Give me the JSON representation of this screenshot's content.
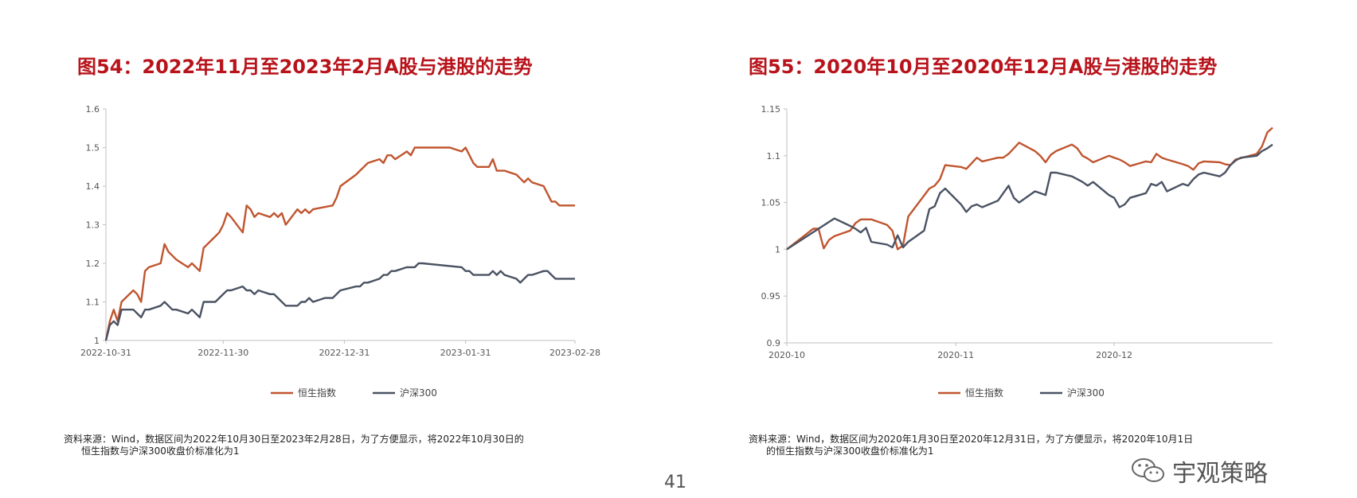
{
  "page_number": "41",
  "logo_text": "宇观策略",
  "colors": {
    "hsi": "#c0552f",
    "csi300": "#4a5263",
    "title": "#b8131b"
  },
  "chart_data": [
    {
      "type": "line",
      "title": "图54：2022年11月至2023年2月A股与港股的走势",
      "x_tick_labels": [
        "2022-10-31",
        "2022-11-30",
        "2022-12-31",
        "2023-01-31",
        "2023-02-28"
      ],
      "x_range": [
        "2022-10-31",
        "2023-02-28"
      ],
      "ylim": [
        1,
        1.6
      ],
      "y_ticks": [
        "1",
        "1.1",
        "1.2",
        "1.3",
        "1.4",
        "1.5",
        "1.6"
      ],
      "legend": [
        "恒生指数",
        "沪深300"
      ],
      "legend_position": "bottom",
      "source_line1": "资料来源：Wind，数据区间为2022年10月30日至2023年2月28日，为了方便显示，将2022年10月30日的",
      "source_line2": "恒生指数与沪深300收盘价标准化为1",
      "series": [
        {
          "name": "恒生指数",
          "x": [
            "2022-10-31",
            "2022-11-01",
            "2022-11-02",
            "2022-11-03",
            "2022-11-04",
            "2022-11-07",
            "2022-11-08",
            "2022-11-09",
            "2022-11-10",
            "2022-11-11",
            "2022-11-14",
            "2022-11-15",
            "2022-11-16",
            "2022-11-17",
            "2022-11-18",
            "2022-11-21",
            "2022-11-22",
            "2022-11-23",
            "2022-11-24",
            "2022-11-25",
            "2022-11-28",
            "2022-11-29",
            "2022-11-30",
            "2022-12-01",
            "2022-12-02",
            "2022-12-05",
            "2022-12-06",
            "2022-12-07",
            "2022-12-08",
            "2022-12-09",
            "2022-12-12",
            "2022-12-13",
            "2022-12-14",
            "2022-12-15",
            "2022-12-16",
            "2022-12-19",
            "2022-12-20",
            "2022-12-21",
            "2022-12-22",
            "2022-12-23",
            "2022-12-28",
            "2022-12-29",
            "2022-12-30",
            "2023-01-03",
            "2023-01-04",
            "2023-01-05",
            "2023-01-06",
            "2023-01-09",
            "2023-01-10",
            "2023-01-11",
            "2023-01-12",
            "2023-01-13",
            "2023-01-16",
            "2023-01-17",
            "2023-01-18",
            "2023-01-19",
            "2023-01-20",
            "2023-01-26",
            "2023-01-27",
            "2023-01-30",
            "2023-01-31",
            "2023-02-01",
            "2023-02-02",
            "2023-02-03",
            "2023-02-06",
            "2023-02-07",
            "2023-02-08",
            "2023-02-09",
            "2023-02-10",
            "2023-02-13",
            "2023-02-14",
            "2023-02-15",
            "2023-02-16",
            "2023-02-17",
            "2023-02-20",
            "2023-02-21",
            "2023-02-22",
            "2023-02-23",
            "2023-02-24",
            "2023-02-27",
            "2023-02-28"
          ],
          "values": [
            1.0,
            1.05,
            1.08,
            1.05,
            1.1,
            1.13,
            1.12,
            1.1,
            1.18,
            1.19,
            1.2,
            1.25,
            1.23,
            1.22,
            1.21,
            1.19,
            1.2,
            1.19,
            1.18,
            1.24,
            1.27,
            1.28,
            1.3,
            1.33,
            1.32,
            1.28,
            1.35,
            1.34,
            1.32,
            1.33,
            1.32,
            1.33,
            1.32,
            1.33,
            1.3,
            1.34,
            1.33,
            1.34,
            1.33,
            1.34,
            1.35,
            1.37,
            1.4,
            1.43,
            1.44,
            1.45,
            1.46,
            1.47,
            1.46,
            1.48,
            1.48,
            1.47,
            1.49,
            1.48,
            1.5,
            1.5,
            1.5,
            1.5,
            1.5,
            1.49,
            1.5,
            1.48,
            1.46,
            1.45,
            1.45,
            1.47,
            1.44,
            1.44,
            1.44,
            1.43,
            1.42,
            1.41,
            1.42,
            1.41,
            1.4,
            1.38,
            1.36,
            1.36,
            1.35,
            1.35,
            1.35
          ]
        },
        {
          "name": "沪深300",
          "x": [
            "2022-10-31",
            "2022-11-01",
            "2022-11-02",
            "2022-11-03",
            "2022-11-04",
            "2022-11-07",
            "2022-11-08",
            "2022-11-09",
            "2022-11-10",
            "2022-11-11",
            "2022-11-14",
            "2022-11-15",
            "2022-11-16",
            "2022-11-17",
            "2022-11-18",
            "2022-11-21",
            "2022-11-22",
            "2022-11-23",
            "2022-11-24",
            "2022-11-25",
            "2022-11-28",
            "2022-11-29",
            "2022-11-30",
            "2022-12-01",
            "2022-12-02",
            "2022-12-05",
            "2022-12-06",
            "2022-12-07",
            "2022-12-08",
            "2022-12-09",
            "2022-12-12",
            "2022-12-13",
            "2022-12-14",
            "2022-12-15",
            "2022-12-16",
            "2022-12-19",
            "2022-12-20",
            "2022-12-21",
            "2022-12-22",
            "2022-12-23",
            "2022-12-26",
            "2022-12-27",
            "2022-12-28",
            "2022-12-29",
            "2022-12-30",
            "2023-01-03",
            "2023-01-04",
            "2023-01-05",
            "2023-01-06",
            "2023-01-09",
            "2023-01-10",
            "2023-01-11",
            "2023-01-12",
            "2023-01-13",
            "2023-01-16",
            "2023-01-17",
            "2023-01-18",
            "2023-01-19",
            "2023-01-20",
            "2023-01-30",
            "2023-01-31",
            "2023-02-01",
            "2023-02-02",
            "2023-02-03",
            "2023-02-06",
            "2023-02-07",
            "2023-02-08",
            "2023-02-09",
            "2023-02-10",
            "2023-02-13",
            "2023-02-14",
            "2023-02-15",
            "2023-02-16",
            "2023-02-17",
            "2023-02-20",
            "2023-02-21",
            "2023-02-22",
            "2023-02-23",
            "2023-02-24",
            "2023-02-27",
            "2023-02-28"
          ],
          "values": [
            1.0,
            1.04,
            1.05,
            1.04,
            1.08,
            1.08,
            1.07,
            1.06,
            1.08,
            1.08,
            1.09,
            1.1,
            1.09,
            1.08,
            1.08,
            1.07,
            1.08,
            1.07,
            1.06,
            1.1,
            1.1,
            1.11,
            1.12,
            1.13,
            1.13,
            1.14,
            1.13,
            1.13,
            1.12,
            1.13,
            1.12,
            1.12,
            1.11,
            1.1,
            1.09,
            1.09,
            1.1,
            1.1,
            1.11,
            1.1,
            1.11,
            1.11,
            1.11,
            1.12,
            1.13,
            1.14,
            1.14,
            1.15,
            1.15,
            1.16,
            1.17,
            1.17,
            1.18,
            1.18,
            1.19,
            1.19,
            1.19,
            1.2,
            1.2,
            1.19,
            1.18,
            1.18,
            1.17,
            1.17,
            1.17,
            1.18,
            1.17,
            1.18,
            1.17,
            1.16,
            1.15,
            1.16,
            1.17,
            1.17,
            1.18,
            1.18,
            1.17,
            1.16,
            1.16,
            1.16,
            1.16
          ]
        }
      ]
    },
    {
      "type": "line",
      "title": "图55：2020年10月至2020年12月A股与港股的走势",
      "x_tick_labels": [
        "2020-10",
        "2020-11",
        "2020-12"
      ],
      "x_range": [
        "2020-09-30",
        "2020-12-31"
      ],
      "ylim": [
        0.9,
        1.15
      ],
      "y_ticks": [
        "0.9",
        "0.95",
        "1",
        "1.05",
        "1.1",
        "1.15"
      ],
      "legend": [
        "恒生指数",
        "沪深300"
      ],
      "legend_position": "bottom",
      "source_line1": "资料来源：Wind，数据区间为2020年1月30日至2020年12月31日，为了方便显示，将2020年10月1日",
      "source_line2": "的恒生指数与沪深300收盘价标准化为1",
      "series": [
        {
          "name": "恒生指数",
          "x": [
            "2020-09-30",
            "2020-10-05",
            "2020-10-06",
            "2020-10-07",
            "2020-10-08",
            "2020-10-09",
            "2020-10-12",
            "2020-10-13",
            "2020-10-14",
            "2020-10-15",
            "2020-10-16",
            "2020-10-19",
            "2020-10-20",
            "2020-10-21",
            "2020-10-22",
            "2020-10-23",
            "2020-10-27",
            "2020-10-28",
            "2020-10-29",
            "2020-10-30",
            "2020-11-02",
            "2020-11-03",
            "2020-11-04",
            "2020-11-05",
            "2020-11-06",
            "2020-11-09",
            "2020-11-10",
            "2020-11-11",
            "2020-11-12",
            "2020-11-13",
            "2020-11-16",
            "2020-11-17",
            "2020-11-18",
            "2020-11-19",
            "2020-11-20",
            "2020-11-23",
            "2020-11-24",
            "2020-11-25",
            "2020-11-26",
            "2020-11-27",
            "2020-11-30",
            "2020-12-01",
            "2020-12-02",
            "2020-12-03",
            "2020-12-04",
            "2020-12-07",
            "2020-12-08",
            "2020-12-09",
            "2020-12-10",
            "2020-12-11",
            "2020-12-14",
            "2020-12-15",
            "2020-12-16",
            "2020-12-17",
            "2020-12-18",
            "2020-12-21",
            "2020-12-22",
            "2020-12-23",
            "2020-12-24",
            "2020-12-28",
            "2020-12-29",
            "2020-12-30",
            "2020-12-31"
          ],
          "values": [
            1.0,
            1.022,
            1.022,
            1.001,
            1.01,
            1.014,
            1.02,
            1.028,
            1.032,
            1.032,
            1.032,
            1.026,
            1.02,
            1.0,
            1.004,
            1.035,
            1.065,
            1.068,
            1.075,
            1.09,
            1.088,
            1.086,
            1.092,
            1.098,
            1.094,
            1.098,
            1.098,
            1.102,
            1.108,
            1.114,
            1.105,
            1.1,
            1.093,
            1.101,
            1.105,
            1.112,
            1.108,
            1.1,
            1.097,
            1.093,
            1.1,
            1.098,
            1.096,
            1.093,
            1.089,
            1.094,
            1.093,
            1.102,
            1.098,
            1.096,
            1.091,
            1.089,
            1.085,
            1.092,
            1.094,
            1.093,
            1.091,
            1.09,
            1.096,
            1.102,
            1.11,
            1.125,
            1.13
          ]
        },
        {
          "name": "沪深300",
          "x": [
            "2020-09-30",
            "2020-10-09",
            "2020-10-12",
            "2020-10-13",
            "2020-10-14",
            "2020-10-15",
            "2020-10-16",
            "2020-10-19",
            "2020-10-20",
            "2020-10-21",
            "2020-10-22",
            "2020-10-23",
            "2020-10-26",
            "2020-10-27",
            "2020-10-28",
            "2020-10-29",
            "2020-10-30",
            "2020-11-02",
            "2020-11-03",
            "2020-11-04",
            "2020-11-05",
            "2020-11-06",
            "2020-11-09",
            "2020-11-10",
            "2020-11-11",
            "2020-11-12",
            "2020-11-13",
            "2020-11-16",
            "2020-11-17",
            "2020-11-18",
            "2020-11-19",
            "2020-11-20",
            "2020-11-23",
            "2020-11-24",
            "2020-11-25",
            "2020-11-26",
            "2020-11-27",
            "2020-11-30",
            "2020-12-01",
            "2020-12-02",
            "2020-12-03",
            "2020-12-04",
            "2020-12-07",
            "2020-12-08",
            "2020-12-09",
            "2020-12-10",
            "2020-12-11",
            "2020-12-14",
            "2020-12-15",
            "2020-12-16",
            "2020-12-17",
            "2020-12-18",
            "2020-12-21",
            "2020-12-22",
            "2020-12-23",
            "2020-12-24",
            "2020-12-25",
            "2020-12-28",
            "2020-12-29",
            "2020-12-30",
            "2020-12-31"
          ],
          "values": [
            1.0,
            1.033,
            1.025,
            1.022,
            1.018,
            1.023,
            1.008,
            1.005,
            1.002,
            1.015,
            1.002,
            1.008,
            1.02,
            1.043,
            1.046,
            1.06,
            1.065,
            1.048,
            1.04,
            1.046,
            1.048,
            1.045,
            1.052,
            1.06,
            1.068,
            1.055,
            1.05,
            1.062,
            1.06,
            1.058,
            1.082,
            1.082,
            1.078,
            1.075,
            1.072,
            1.068,
            1.072,
            1.058,
            1.055,
            1.045,
            1.048,
            1.055,
            1.06,
            1.07,
            1.068,
            1.072,
            1.062,
            1.07,
            1.068,
            1.075,
            1.08,
            1.082,
            1.078,
            1.082,
            1.09,
            1.095,
            1.098,
            1.1,
            1.105,
            1.108,
            1.112
          ]
        }
      ]
    }
  ]
}
